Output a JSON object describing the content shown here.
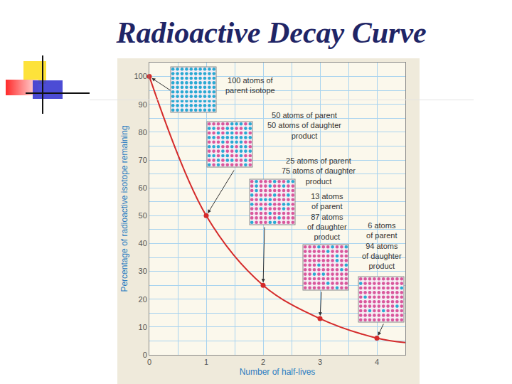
{
  "chart_data": {
    "type": "line",
    "title": "Radioactive Decay Curve",
    "x_label": "Number of half-lives",
    "y_label": "Percentage of radioactive isotope remaining",
    "series": [
      {
        "type": "line",
        "x": [
          0,
          1,
          2,
          3,
          4,
          4.5
        ],
        "values": [
          100,
          50,
          25,
          13,
          6,
          4.4
        ],
        "color": "#d42a2a",
        "line_style": "solid"
      },
      {
        "type": "scatter",
        "x": [
          0,
          1,
          2,
          3,
          4
        ],
        "values": [
          100,
          50,
          25,
          13,
          6
        ],
        "color": "#d42a2a",
        "marker": "circle"
      }
    ],
    "annotations": [
      {
        "text": [
          "100 atoms of",
          "parent isotope"
        ],
        "x": 0,
        "y": 100
      },
      {
        "text": [
          "50 atoms of parent",
          "50 atoms of daughter",
          "product"
        ],
        "x": 1,
        "y": 50
      },
      {
        "text": [
          "25 atoms of parent",
          "75 atoms of daughter",
          "product"
        ],
        "x": 2,
        "y": 25
      },
      {
        "text": [
          "13 atoms",
          "of parent",
          "87 atoms",
          "of daughter",
          "product"
        ],
        "x": 3,
        "y": 13
      },
      {
        "text": [
          "6 atoms",
          "of parent",
          "94 atoms",
          "of daughter",
          "product"
        ],
        "x": 4,
        "y": 6
      }
    ],
    "xlim": [
      0,
      4.5
    ],
    "ylim": [
      0,
      105
    ],
    "xticks": [
      0,
      1,
      2,
      3,
      4
    ],
    "yticks": [
      0,
      10,
      20,
      30,
      40,
      50,
      60,
      70,
      80,
      90,
      100
    ],
    "grid": true
  }
}
